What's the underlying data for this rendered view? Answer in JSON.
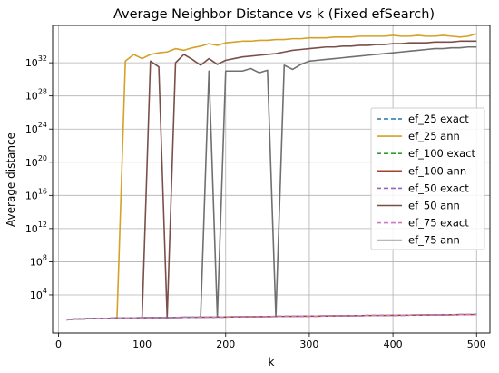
{
  "chart_data": {
    "type": "line",
    "title": "Average Neighbor Distance vs k (Fixed efSearch)",
    "xlabel": "k",
    "ylabel": "Average distance",
    "xlim": [
      -7,
      516
    ],
    "ylim_log10": [
      -0.6,
      36.5
    ],
    "y_scale": "log",
    "grid": true,
    "legend_position": "center-right",
    "x_ticks": [
      0,
      100,
      200,
      300,
      400,
      500
    ],
    "x_tick_labels": [
      "0",
      "100",
      "200",
      "300",
      "400",
      "500"
    ],
    "y_ticks_log10": [
      4,
      8,
      12,
      16,
      20,
      24,
      28,
      32
    ],
    "y_tick_bases": [
      "10",
      "10",
      "10",
      "10",
      "10",
      "10",
      "10",
      "10"
    ],
    "y_tick_exponents": [
      "4",
      "8",
      "12",
      "16",
      "20",
      "24",
      "28",
      "32"
    ],
    "x": [
      10,
      20,
      30,
      40,
      50,
      60,
      70,
      80,
      90,
      100,
      110,
      120,
      130,
      140,
      150,
      160,
      170,
      180,
      190,
      200,
      210,
      220,
      230,
      240,
      250,
      260,
      270,
      280,
      290,
      300,
      310,
      320,
      330,
      340,
      350,
      360,
      370,
      380,
      390,
      400,
      410,
      420,
      430,
      440,
      450,
      460,
      470,
      480,
      490,
      500
    ],
    "series": [
      {
        "name": "ef_25 exact",
        "color": "#1f77b4",
        "dashed": true,
        "values_log10": [
          1.0,
          1.1,
          1.12,
          1.15,
          1.17,
          1.18,
          1.2,
          1.22,
          1.23,
          1.24,
          1.25,
          1.26,
          1.27,
          1.28,
          1.29,
          1.3,
          1.31,
          1.32,
          1.33,
          1.34,
          1.35,
          1.36,
          1.37,
          1.38,
          1.39,
          1.4,
          1.41,
          1.42,
          1.43,
          1.44,
          1.45,
          1.46,
          1.47,
          1.48,
          1.49,
          1.5,
          1.51,
          1.52,
          1.53,
          1.54,
          1.55,
          1.56,
          1.57,
          1.58,
          1.59,
          1.6,
          1.61,
          1.62,
          1.63,
          1.64
        ]
      },
      {
        "name": "ef_25 ann",
        "color": "#d4a12a",
        "dashed": false,
        "values_log10": [
          1.0,
          1.1,
          1.12,
          1.15,
          1.17,
          1.18,
          1.2,
          32.2,
          33.0,
          32.5,
          33.0,
          33.2,
          33.3,
          33.7,
          33.5,
          33.8,
          34.0,
          34.3,
          34.1,
          34.4,
          34.5,
          34.6,
          34.6,
          34.7,
          34.7,
          34.8,
          34.8,
          34.9,
          34.9,
          35.0,
          35.0,
          35.0,
          35.1,
          35.1,
          35.1,
          35.2,
          35.2,
          35.2,
          35.2,
          35.3,
          35.2,
          35.2,
          35.3,
          35.2,
          35.2,
          35.3,
          35.2,
          35.1,
          35.2,
          35.5
        ]
      },
      {
        "name": "ef_100 exact",
        "color": "#2ca02c",
        "dashed": true,
        "values_log10": [
          1.0,
          1.1,
          1.12,
          1.15,
          1.17,
          1.18,
          1.2,
          1.22,
          1.23,
          1.24,
          1.25,
          1.26,
          1.27,
          1.28,
          1.29,
          1.3,
          1.31,
          1.32,
          1.33,
          1.34,
          1.35,
          1.36,
          1.37,
          1.38,
          1.39,
          1.4,
          1.41,
          1.42,
          1.43,
          1.44,
          1.45,
          1.46,
          1.47,
          1.48,
          1.49,
          1.5,
          1.51,
          1.52,
          1.53,
          1.54,
          1.55,
          1.56,
          1.57,
          1.58,
          1.59,
          1.6,
          1.61,
          1.62,
          1.63,
          1.64
        ]
      },
      {
        "name": "ef_100 ann",
        "color": "#a5412f",
        "dashed": false,
        "values_log10": [
          1.0,
          1.1,
          1.12,
          1.15,
          1.17,
          1.18,
          1.2,
          1.22,
          1.23,
          1.24,
          1.25,
          1.26,
          1.27,
          1.28,
          1.29,
          1.3,
          1.31,
          1.32,
          1.33,
          1.34,
          1.35,
          1.36,
          1.37,
          1.38,
          1.39,
          1.4,
          1.41,
          1.42,
          1.43,
          1.44,
          1.45,
          1.46,
          1.47,
          1.48,
          1.49,
          1.5,
          1.51,
          1.52,
          1.53,
          1.54,
          1.55,
          1.56,
          1.57,
          1.58,
          1.59,
          1.6,
          1.61,
          1.62,
          1.63,
          1.64
        ]
      },
      {
        "name": "ef_50 exact",
        "color": "#9467bd",
        "dashed": true,
        "values_log10": [
          1.0,
          1.1,
          1.12,
          1.15,
          1.17,
          1.18,
          1.2,
          1.22,
          1.23,
          1.24,
          1.25,
          1.26,
          1.27,
          1.28,
          1.29,
          1.3,
          1.31,
          1.32,
          1.33,
          1.34,
          1.35,
          1.36,
          1.37,
          1.38,
          1.39,
          1.4,
          1.41,
          1.42,
          1.43,
          1.44,
          1.45,
          1.46,
          1.47,
          1.48,
          1.49,
          1.5,
          1.51,
          1.52,
          1.53,
          1.54,
          1.55,
          1.56,
          1.57,
          1.58,
          1.59,
          1.6,
          1.61,
          1.62,
          1.63,
          1.64
        ]
      },
      {
        "name": "ef_50 ann",
        "color": "#7b4f49",
        "dashed": false,
        "values_log10": [
          1.0,
          1.1,
          1.12,
          1.15,
          1.17,
          1.18,
          1.2,
          1.22,
          1.23,
          1.24,
          32.2,
          31.5,
          1.27,
          32.0,
          33.0,
          32.4,
          31.7,
          32.5,
          31.8,
          32.3,
          32.5,
          32.7,
          32.8,
          32.9,
          33.0,
          33.1,
          33.3,
          33.5,
          33.6,
          33.7,
          33.8,
          33.9,
          33.9,
          34.0,
          34.0,
          34.1,
          34.1,
          34.2,
          34.2,
          34.3,
          34.3,
          34.4,
          34.4,
          34.4,
          34.5,
          34.5,
          34.5,
          34.6,
          34.6,
          34.6
        ]
      },
      {
        "name": "ef_75 exact",
        "color": "#cc79c0",
        "dashed": true,
        "values_log10": [
          1.0,
          1.1,
          1.12,
          1.15,
          1.17,
          1.18,
          1.2,
          1.22,
          1.23,
          1.24,
          1.25,
          1.26,
          1.27,
          1.28,
          1.29,
          1.3,
          1.31,
          1.32,
          1.33,
          1.34,
          1.35,
          1.36,
          1.37,
          1.38,
          1.39,
          1.4,
          1.41,
          1.42,
          1.43,
          1.44,
          1.45,
          1.46,
          1.47,
          1.48,
          1.49,
          1.5,
          1.51,
          1.52,
          1.53,
          1.54,
          1.55,
          1.56,
          1.57,
          1.58,
          1.59,
          1.6,
          1.61,
          1.62,
          1.63,
          1.64
        ]
      },
      {
        "name": "ef_75 ann",
        "color": "#707070",
        "dashed": false,
        "values_log10": [
          1.0,
          1.1,
          1.12,
          1.15,
          1.17,
          1.18,
          1.2,
          1.22,
          1.23,
          1.24,
          1.25,
          1.26,
          1.27,
          1.28,
          1.29,
          1.3,
          1.31,
          31.0,
          1.33,
          31.0,
          31.0,
          31.0,
          31.3,
          30.8,
          31.1,
          1.4,
          31.7,
          31.2,
          31.8,
          32.2,
          32.3,
          32.4,
          32.5,
          32.6,
          32.7,
          32.8,
          32.9,
          33.0,
          33.1,
          33.2,
          33.3,
          33.4,
          33.5,
          33.6,
          33.7,
          33.7,
          33.8,
          33.8,
          33.9,
          33.9
        ]
      }
    ]
  }
}
